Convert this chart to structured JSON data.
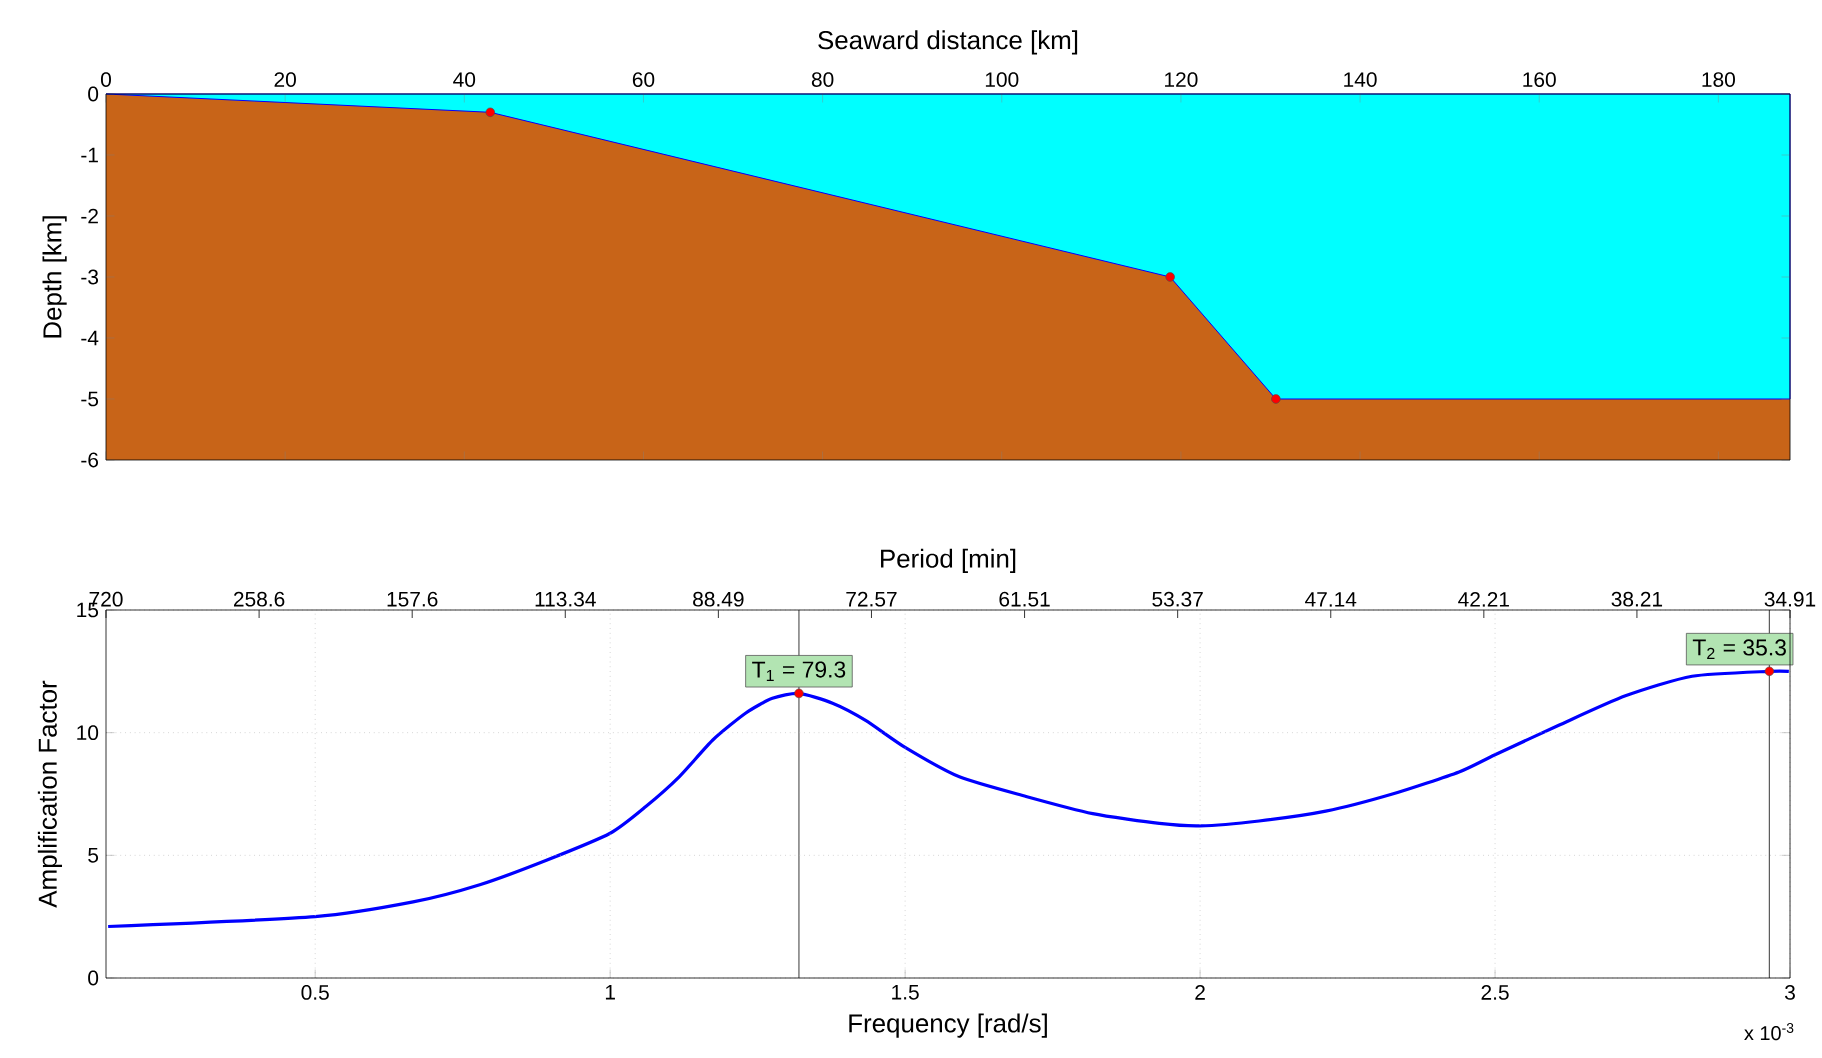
{
  "chart_data": [
    {
      "type": "area",
      "xlabel": "Seaward distance [km]",
      "ylabel": "Depth [km]",
      "xlim": [
        0,
        188
      ],
      "ylim": [
        -6,
        0
      ],
      "xticks": [
        0,
        20,
        40,
        60,
        80,
        100,
        120,
        140,
        160,
        180
      ],
      "yticks": [
        -6,
        -5,
        -4,
        -3,
        -2,
        -1,
        0
      ],
      "grid": false,
      "bands": [
        {
          "axis": "y",
          "from": -6,
          "to": 0,
          "color": "#c86418"
        }
      ],
      "series": [
        {
          "color": "#00ffff",
          "x": [
            0,
            42.9,
            118.8,
            130.6,
            188
          ],
          "values": [
            0,
            -0.3,
            -3.0,
            -5.0,
            -5.0
          ]
        },
        {
          "type": "scatter",
          "color": "#ff0000",
          "marker": "circle",
          "x": [
            42.9,
            118.8,
            130.6
          ],
          "values": [
            -0.3,
            -3.0,
            -5.0
          ]
        }
      ]
    },
    {
      "type": "line",
      "xlabel": "Frequency [rad/s]",
      "ylabel": "Amplification Factor",
      "x2label": "Period [min]",
      "xlim": [
        0.1454,
        3.0
      ],
      "xticks": [
        0.5,
        1,
        1.5,
        2,
        2.5,
        3
      ],
      "ylim": [
        0,
        15
      ],
      "yticks": [
        0,
        5,
        10,
        15
      ],
      "grid": true,
      "ref_lines": [
        {
          "axis": "x",
          "value": 1.32,
          "color": "#595959"
        },
        {
          "axis": "x",
          "value": 2.965,
          "color": "#595959"
        }
      ],
      "series": [
        {
          "color": "#0000ff",
          "line_style": "solid",
          "x": [
            0.149,
            0.5,
            0.666,
            0.779,
            0.892,
            1.0,
            1.061,
            1.117,
            1.174,
            1.23,
            1.275,
            1.32,
            1.377,
            1.433,
            1.5,
            1.592,
            1.705,
            1.818,
            1.931,
            2.0,
            2.1,
            2.213,
            2.326,
            2.439,
            2.5,
            2.608,
            2.721,
            2.834,
            2.965,
            2.998
          ],
          "values": [
            2.1,
            2.5,
            3.1,
            3.8,
            4.8,
            5.9,
            7.0,
            8.2,
            9.7,
            10.8,
            11.4,
            11.6,
            11.2,
            10.5,
            9.4,
            8.2,
            7.4,
            6.7,
            6.3,
            6.2,
            6.4,
            6.8,
            7.5,
            8.4,
            9.1,
            10.3,
            11.5,
            12.3,
            12.5,
            12.5
          ]
        },
        {
          "type": "scatter",
          "color": "#ff0000",
          "marker": "circle",
          "x": [
            1.32,
            2.965
          ],
          "values": [
            11.6,
            12.5
          ]
        }
      ],
      "annotations": [
        {
          "text": "T$_{1}$ = 79.3",
          "x": 1.32,
          "y": 11.6
        },
        {
          "text": "T$_{2}$ = 35.3",
          "x": 2.965,
          "y": 12.5
        },
        "720",
        "258.6",
        "157.6",
        "113.34",
        "88.49",
        "72.57",
        "61.51",
        "53.37",
        "47.14",
        "42.21",
        "38.21",
        "34.91",
        "x 10$^{-3}$"
      ]
    }
  ]
}
